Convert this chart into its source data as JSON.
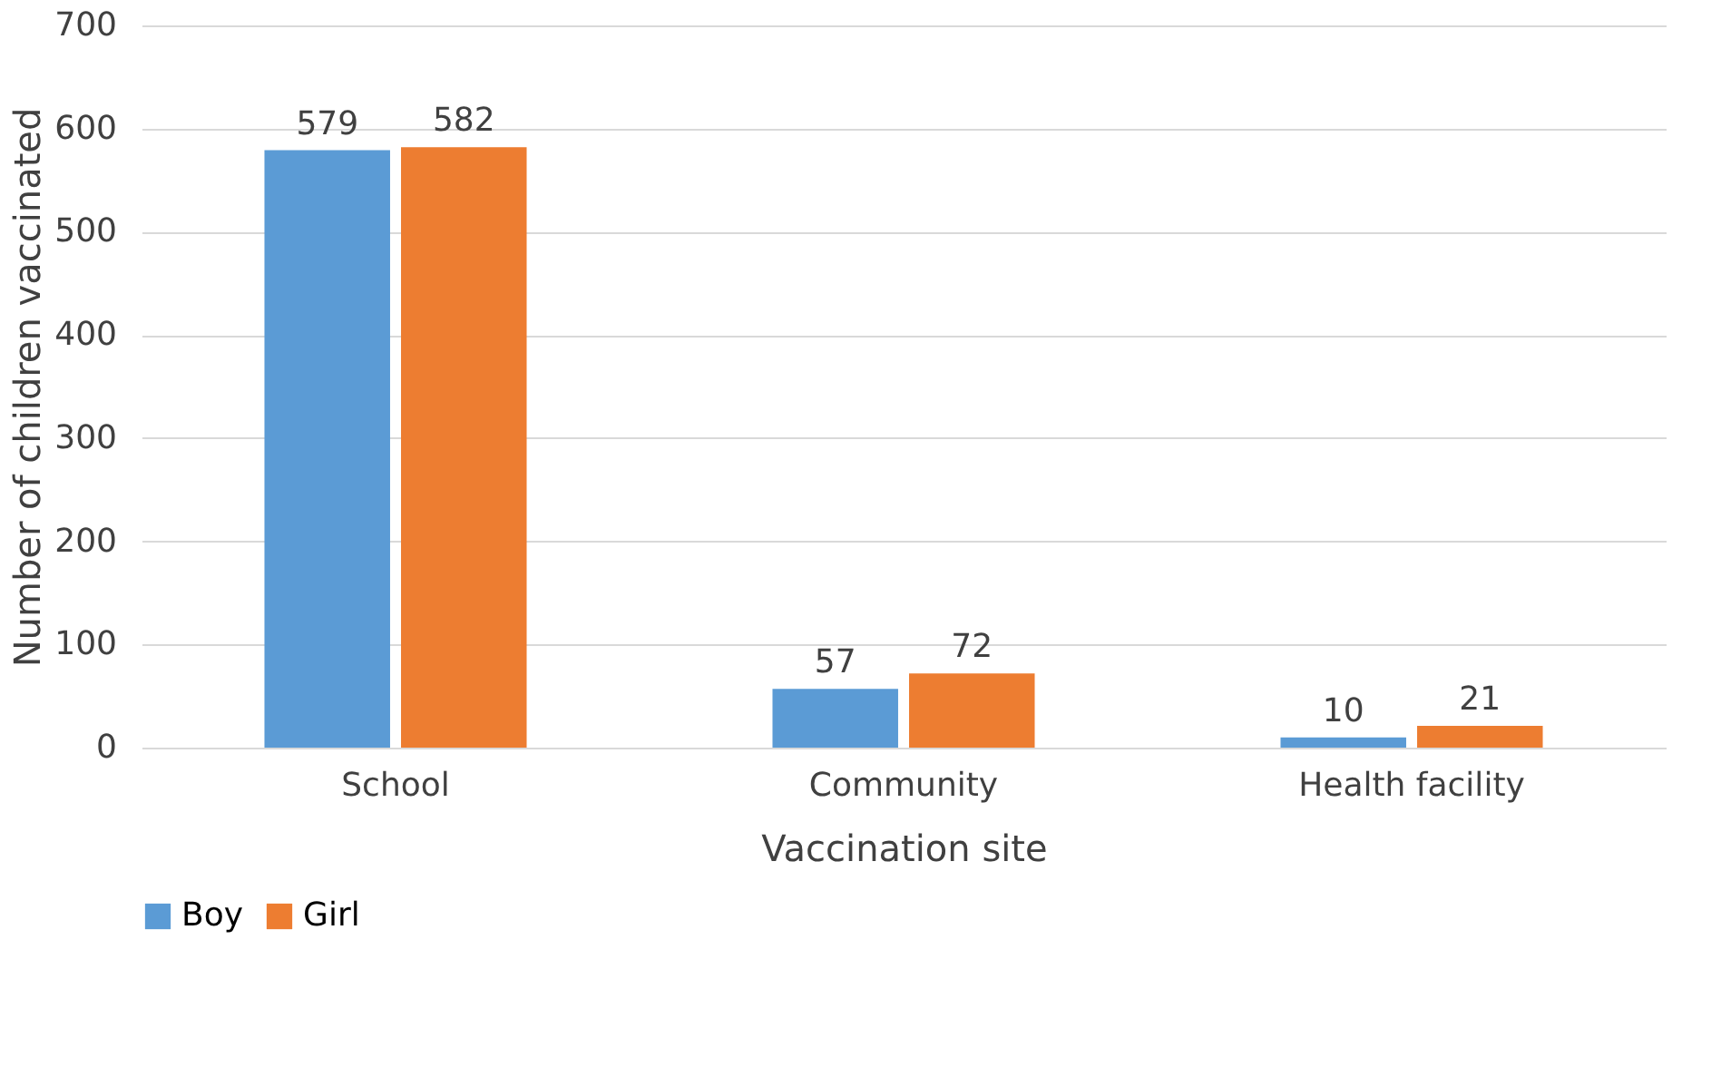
{
  "chart_data": {
    "type": "bar",
    "xlabel": "Vaccination site",
    "ylabel": "Number of children vaccinated",
    "categories": [
      "School",
      "Community",
      "Health facility"
    ],
    "series": [
      {
        "name": "Boy",
        "color": "#5b9bd5",
        "values": [
          579,
          57,
          10
        ]
      },
      {
        "name": "Girl",
        "color": "#ed7d31",
        "values": [
          582,
          72,
          21
        ]
      }
    ],
    "ylim": [
      0,
      700
    ],
    "yticks": [
      0,
      100,
      200,
      300,
      400,
      500,
      600,
      700
    ],
    "grid": "y",
    "legend": "bottom",
    "data_labels": true
  }
}
